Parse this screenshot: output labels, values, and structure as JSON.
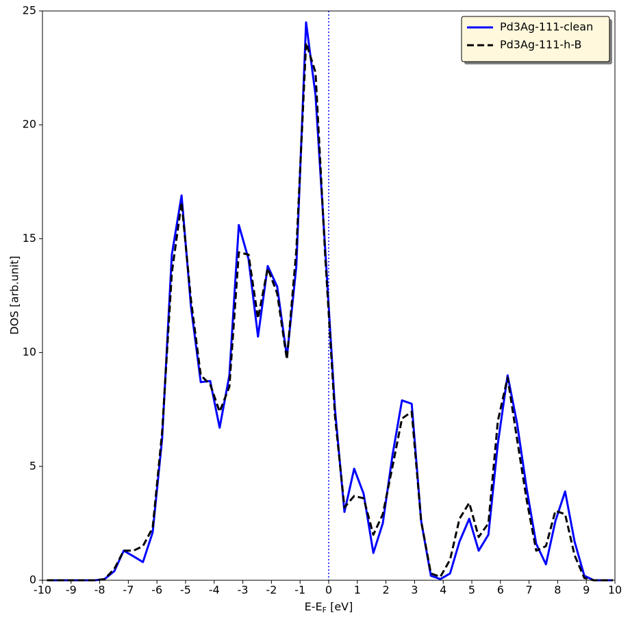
{
  "chart_data": {
    "type": "line",
    "xlabel": [
      "E-E",
      "F",
      " [eV]"
    ],
    "ylabel": "DOS [arb.unit]",
    "x": [
      -9.84,
      -9.5,
      -9.17,
      -8.83,
      -8.5,
      -8.16,
      -7.83,
      -7.49,
      -7.16,
      -6.82,
      -6.49,
      -6.15,
      -5.82,
      -5.48,
      -5.14,
      -4.81,
      -4.47,
      -4.14,
      -3.81,
      -3.47,
      -3.14,
      -2.8,
      -2.47,
      -2.13,
      -1.8,
      -1.46,
      -1.13,
      -0.79,
      -0.46,
      -0.12,
      0.22,
      0.55,
      0.89,
      1.22,
      1.56,
      1.89,
      2.23,
      2.56,
      2.9,
      3.23,
      3.57,
      3.9,
      4.24,
      4.57,
      4.91,
      5.24,
      5.58,
      5.91,
      6.25,
      6.58,
      6.92,
      7.25,
      7.59,
      7.92,
      8.26,
      8.59,
      8.93,
      9.26,
      9.6,
      9.93
    ],
    "series": [
      {
        "name": "Pd3Ag-111-clean",
        "color": "#0000ff",
        "linestyle": "solid",
        "values": [
          0,
          0,
          0,
          0,
          0,
          0,
          0.05,
          0.4,
          1.3,
          1.05,
          0.8,
          2.1,
          6.2,
          14.3,
          16.9,
          12.0,
          8.7,
          8.75,
          6.7,
          9.0,
          15.6,
          14.1,
          10.7,
          13.8,
          12.9,
          9.8,
          13.8,
          24.5,
          21.3,
          14.5,
          7.5,
          3.0,
          4.9,
          3.8,
          1.2,
          2.5,
          5.5,
          7.9,
          7.75,
          2.6,
          0.2,
          0.05,
          0.3,
          1.7,
          2.7,
          1.3,
          2.0,
          6.0,
          9.0,
          6.9,
          4.0,
          1.6,
          0.7,
          2.6,
          3.9,
          1.7,
          0.2,
          0,
          0,
          0
        ]
      },
      {
        "name": "Pd3Ag-111-h-B",
        "color": "#000000",
        "linestyle": "dashed",
        "values": [
          0,
          0,
          0,
          0,
          0,
          0,
          0.05,
          0.5,
          1.3,
          1.3,
          1.5,
          2.3,
          6.5,
          13.5,
          16.6,
          12.3,
          9.0,
          8.6,
          7.4,
          8.5,
          14.4,
          14.3,
          11.5,
          13.7,
          12.6,
          9.7,
          14.5,
          23.6,
          22.3,
          14.2,
          7.2,
          3.2,
          3.7,
          3.6,
          2.0,
          2.9,
          5.0,
          7.1,
          7.4,
          2.6,
          0.3,
          0.15,
          0.9,
          2.7,
          3.4,
          1.9,
          2.5,
          7.0,
          8.9,
          6.2,
          3.5,
          1.3,
          1.5,
          3.05,
          2.9,
          1.1,
          0.1,
          0,
          0,
          0
        ]
      }
    ],
    "vlines": [
      {
        "x": 0,
        "color": "#0000ff",
        "linestyle": "dotted"
      }
    ],
    "xlim": [
      -10,
      10
    ],
    "xticks": [
      -10,
      -9,
      -8,
      -7,
      -6,
      -5,
      -4,
      -3,
      -2,
      -1,
      0,
      1,
      2,
      3,
      4,
      5,
      6,
      7,
      8,
      9,
      10
    ],
    "ylim": [
      0,
      25
    ],
    "yticks": [
      0,
      5,
      10,
      15,
      20,
      25
    ],
    "grid": false,
    "legend": "upper right"
  }
}
